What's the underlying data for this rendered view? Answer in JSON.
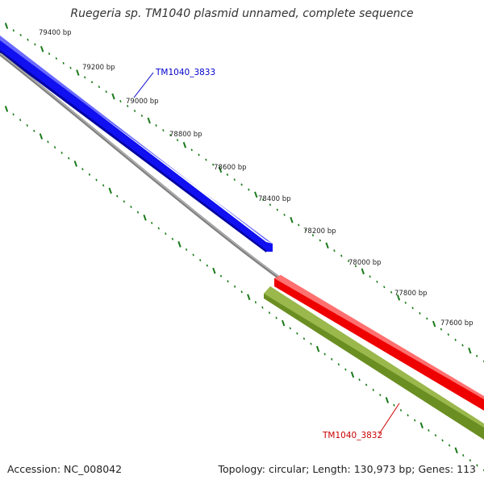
{
  "title": "Ruegeria sp. TM1040 plasmid unnamed, complete sequence",
  "footer": {
    "accession": "Accession: NC_008042",
    "summary": "Topology: circular; Length: 130,973 bp; Genes: 113"
  },
  "colors": {
    "forward_gene": "#1010f0",
    "reverse_gene": "#ee0000",
    "reverse_gene_2": "#6b8e23",
    "backbone": "#808080",
    "ticks": "#1a7a1a",
    "label_blue": "#0000cc",
    "label_red": "#cc0000"
  },
  "tick_labels": [
    "79400 bp",
    "79200 bp",
    "79000 bp",
    "78800 bp",
    "78600 bp",
    "78400 bp",
    "78200 bp",
    "78000 bp",
    "77800 bp",
    "77600 bp"
  ],
  "genes": [
    {
      "id": "TM1040_3833",
      "strand": "forward"
    },
    {
      "id": "TM1040_3832",
      "strand": "reverse"
    }
  ]
}
